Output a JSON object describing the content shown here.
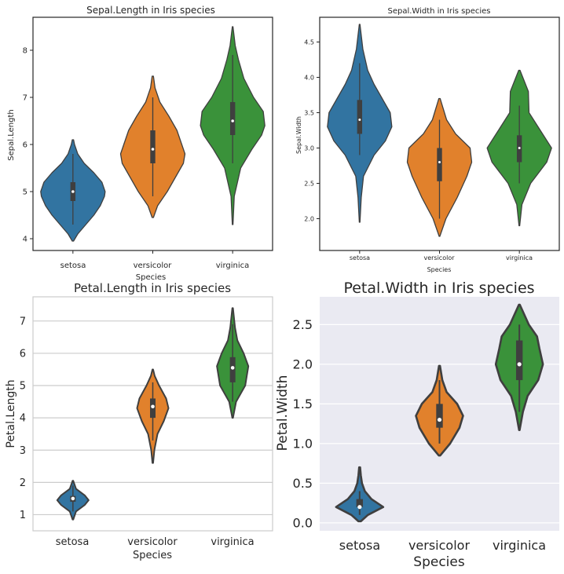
{
  "colors": {
    "setosa": "#3274a1",
    "versicolor": "#e1812c",
    "virginica": "#3a923a",
    "dark": "#3f3f3f",
    "darkgrid_bg": "#eaeaf2",
    "grid": "#cccccc"
  },
  "chart_data": [
    {
      "type": "violin",
      "title": "Sepal.Length in Iris species",
      "xlabel": "Species",
      "ylabel": "Sepal.Length",
      "categories": [
        "setosa",
        "versicolor",
        "virginica"
      ],
      "ylim": [
        3.75,
        8.7
      ],
      "yticks": [
        4,
        5,
        6,
        7,
        8
      ],
      "ytick_labels": [
        "4",
        "5",
        "6",
        "7",
        "8"
      ],
      "series": [
        {
          "name": "setosa",
          "min": 4.3,
          "q1": 4.8,
          "median": 5.0,
          "q3": 5.2,
          "max": 5.8,
          "kde_min": 3.95,
          "kde_max": 6.1,
          "density": [
            [
              3.95,
              0.02
            ],
            [
              4.1,
              0.15
            ],
            [
              4.3,
              0.4
            ],
            [
              4.5,
              0.65
            ],
            [
              4.7,
              0.85
            ],
            [
              4.9,
              0.98
            ],
            [
              5.0,
              1.0
            ],
            [
              5.2,
              0.9
            ],
            [
              5.4,
              0.65
            ],
            [
              5.6,
              0.35
            ],
            [
              5.8,
              0.15
            ],
            [
              6.0,
              0.05
            ],
            [
              6.1,
              0.02
            ]
          ]
        },
        {
          "name": "versicolor",
          "min": 4.9,
          "q1": 5.6,
          "median": 5.9,
          "q3": 6.3,
          "max": 7.0,
          "kde_min": 4.45,
          "kde_max": 7.45,
          "density": [
            [
              4.45,
              0.02
            ],
            [
              4.7,
              0.15
            ],
            [
              5.0,
              0.45
            ],
            [
              5.3,
              0.7
            ],
            [
              5.6,
              0.95
            ],
            [
              5.8,
              1.0
            ],
            [
              6.0,
              0.9
            ],
            [
              6.3,
              0.75
            ],
            [
              6.6,
              0.5
            ],
            [
              6.9,
              0.22
            ],
            [
              7.2,
              0.07
            ],
            [
              7.45,
              0.02
            ]
          ]
        },
        {
          "name": "virginica",
          "min": 5.6,
          "q1": 6.2,
          "median": 6.5,
          "q3": 6.9,
          "max": 7.9,
          "kde_min": 4.3,
          "kde_max": 8.5,
          "density": [
            [
              4.3,
              0.01
            ],
            [
              4.9,
              0.05
            ],
            [
              5.5,
              0.25
            ],
            [
              5.9,
              0.6
            ],
            [
              6.2,
              0.9
            ],
            [
              6.4,
              1.0
            ],
            [
              6.7,
              0.95
            ],
            [
              7.0,
              0.65
            ],
            [
              7.4,
              0.35
            ],
            [
              7.8,
              0.18
            ],
            [
              8.1,
              0.08
            ],
            [
              8.5,
              0.01
            ]
          ]
        }
      ]
    },
    {
      "type": "violin",
      "title": "Sepal.Width in Iris species",
      "xlabel": "Species",
      "ylabel": "Sepal.Width",
      "categories": [
        "setosa",
        "versicolor",
        "virginica"
      ],
      "ylim": [
        1.55,
        4.85
      ],
      "yticks": [
        2.0,
        2.5,
        3.0,
        3.5,
        4.0,
        4.5
      ],
      "ytick_labels": [
        "2.0",
        "2.5",
        "3.0",
        "3.5",
        "4.0",
        "4.5"
      ],
      "series": [
        {
          "name": "setosa",
          "min": 2.9,
          "q1": 3.2,
          "median": 3.4,
          "q3": 3.68,
          "max": 4.2,
          "kde_min": 1.95,
          "kde_max": 4.75,
          "density": [
            [
              1.95,
              0.01
            ],
            [
              2.3,
              0.05
            ],
            [
              2.6,
              0.12
            ],
            [
              2.9,
              0.45
            ],
            [
              3.1,
              0.8
            ],
            [
              3.3,
              1.0
            ],
            [
              3.5,
              0.95
            ],
            [
              3.7,
              0.7
            ],
            [
              3.9,
              0.45
            ],
            [
              4.1,
              0.25
            ],
            [
              4.4,
              0.1
            ],
            [
              4.75,
              0.01
            ]
          ]
        },
        {
          "name": "versicolor",
          "min": 2.0,
          "q1": 2.53,
          "median": 2.8,
          "q3": 3.0,
          "max": 3.4,
          "kde_min": 1.75,
          "kde_max": 3.7,
          "density": [
            [
              1.75,
              0.01
            ],
            [
              2.0,
              0.2
            ],
            [
              2.3,
              0.55
            ],
            [
              2.6,
              0.85
            ],
            [
              2.8,
              1.0
            ],
            [
              3.0,
              0.95
            ],
            [
              3.2,
              0.5
            ],
            [
              3.4,
              0.22
            ],
            [
              3.7,
              0.02
            ]
          ]
        },
        {
          "name": "virginica",
          "min": 2.5,
          "q1": 2.8,
          "median": 3.0,
          "q3": 3.18,
          "max": 3.6,
          "kde_min": 1.9,
          "kde_max": 4.1,
          "density": [
            [
              1.9,
              0.01
            ],
            [
              2.2,
              0.08
            ],
            [
              2.5,
              0.35
            ],
            [
              2.8,
              0.85
            ],
            [
              3.0,
              1.0
            ],
            [
              3.2,
              0.72
            ],
            [
              3.5,
              0.3
            ],
            [
              3.8,
              0.28
            ],
            [
              4.1,
              0.02
            ]
          ]
        }
      ]
    },
    {
      "type": "violin",
      "title": "Petal.Length in Iris species",
      "xlabel": "Species",
      "ylabel": "Petal.Length",
      "categories": [
        "setosa",
        "versicolor",
        "virginica"
      ],
      "ylim": [
        0.5,
        7.75
      ],
      "yticks": [
        1,
        2,
        3,
        4,
        5,
        6,
        7
      ],
      "ytick_labels": [
        "1",
        "2",
        "3",
        "4",
        "5",
        "6",
        "7"
      ],
      "grid": true,
      "series": [
        {
          "name": "setosa",
          "min": 1.1,
          "q1": 1.4,
          "median": 1.5,
          "q3": 1.58,
          "max": 1.9,
          "kde_min": 0.85,
          "kde_max": 2.05,
          "density": [
            [
              0.85,
              0.02
            ],
            [
              1.1,
              0.2
            ],
            [
              1.3,
              0.75
            ],
            [
              1.45,
              1.0
            ],
            [
              1.6,
              0.75
            ],
            [
              1.8,
              0.2
            ],
            [
              2.05,
              0.02
            ]
          ]
        },
        {
          "name": "versicolor",
          "min": 3.3,
          "q1": 4.0,
          "median": 4.35,
          "q3": 4.6,
          "max": 5.1,
          "kde_min": 2.6,
          "kde_max": 5.5,
          "density": [
            [
              2.6,
              0.02
            ],
            [
              3.0,
              0.1
            ],
            [
              3.5,
              0.3
            ],
            [
              3.9,
              0.7
            ],
            [
              4.3,
              1.0
            ],
            [
              4.6,
              0.85
            ],
            [
              5.0,
              0.4
            ],
            [
              5.3,
              0.12
            ],
            [
              5.5,
              0.02
            ]
          ]
        },
        {
          "name": "virginica",
          "min": 4.5,
          "q1": 5.1,
          "median": 5.55,
          "q3": 5.88,
          "max": 6.9,
          "kde_min": 4.0,
          "kde_max": 7.4,
          "density": [
            [
              4.0,
              0.02
            ],
            [
              4.5,
              0.22
            ],
            [
              5.0,
              0.8
            ],
            [
              5.3,
              0.9
            ],
            [
              5.6,
              1.0
            ],
            [
              6.0,
              0.7
            ],
            [
              6.4,
              0.3
            ],
            [
              6.8,
              0.15
            ],
            [
              7.4,
              0.02
            ]
          ]
        }
      ]
    },
    {
      "type": "violin",
      "title": "Petal.Width in Iris species",
      "xlabel": "Species",
      "ylabel": "Petal.Width",
      "categories": [
        "setosa",
        "versicolor",
        "virginica"
      ],
      "ylim": [
        -0.1,
        2.85
      ],
      "yticks": [
        0.0,
        0.5,
        1.0,
        1.5,
        2.0,
        2.5
      ],
      "ytick_labels": [
        "0.0",
        "0.5",
        "1.0",
        "1.5",
        "2.0",
        "2.5"
      ],
      "series": [
        {
          "name": "setosa",
          "min": 0.1,
          "q1": 0.2,
          "median": 0.2,
          "q3": 0.3,
          "max": 0.4,
          "kde_min": 0.02,
          "kde_max": 0.7,
          "density": [
            [
              0.02,
              0.05
            ],
            [
              0.1,
              0.35
            ],
            [
              0.2,
              1.0
            ],
            [
              0.3,
              0.5
            ],
            [
              0.4,
              0.22
            ],
            [
              0.5,
              0.1
            ],
            [
              0.6,
              0.05
            ],
            [
              0.7,
              0.02
            ]
          ]
        },
        {
          "name": "versicolor",
          "min": 1.0,
          "q1": 1.2,
          "median": 1.3,
          "q3": 1.5,
          "max": 1.8,
          "kde_min": 0.85,
          "kde_max": 1.98,
          "density": [
            [
              0.85,
              0.03
            ],
            [
              1.0,
              0.45
            ],
            [
              1.2,
              0.85
            ],
            [
              1.35,
              1.0
            ],
            [
              1.5,
              0.75
            ],
            [
              1.65,
              0.3
            ],
            [
              1.8,
              0.12
            ],
            [
              1.98,
              0.02
            ]
          ]
        },
        {
          "name": "virginica",
          "min": 1.4,
          "q1": 1.8,
          "median": 2.0,
          "q3": 2.3,
          "max": 2.5,
          "kde_min": 1.17,
          "kde_max": 2.75,
          "density": [
            [
              1.17,
              0.01
            ],
            [
              1.4,
              0.15
            ],
            [
              1.6,
              0.35
            ],
            [
              1.8,
              0.8
            ],
            [
              2.0,
              1.0
            ],
            [
              2.2,
              0.85
            ],
            [
              2.35,
              0.75
            ],
            [
              2.5,
              0.4
            ],
            [
              2.75,
              0.02
            ]
          ]
        }
      ]
    }
  ]
}
